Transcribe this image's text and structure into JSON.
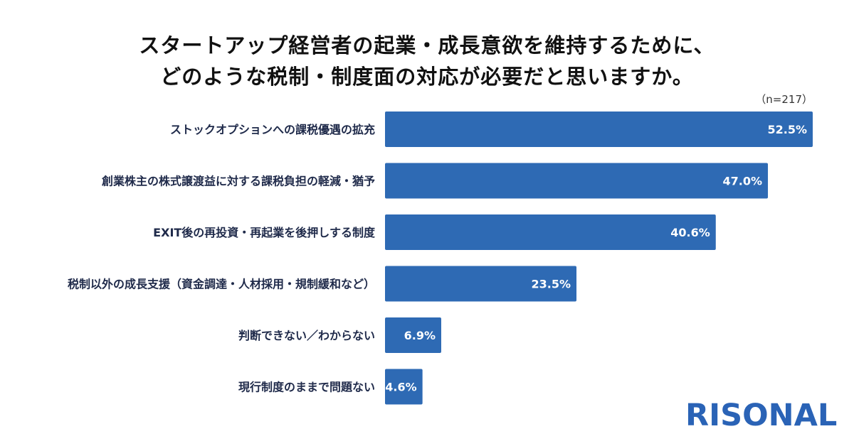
{
  "title_lines": [
    "スタートアップ経営者の起業・成長意欲を維持するために、",
    "どのような税制・制度面の対応が必要だと思いますか。"
  ],
  "sample_note": "（n=217）",
  "brand": "RISONAL",
  "colors": {
    "bar": "#2e6ab4",
    "label": "#1f2a4a",
    "value_text": "#ffffff"
  },
  "chart_data": {
    "type": "bar",
    "orientation": "horizontal",
    "title": "スタートアップ経営者の起業・成長意欲を維持するために、どのような税制・制度面の対応が必要だと思いますか。",
    "categories": [
      "ストックオプションへの課税優遇の拡充",
      "創業株主の株式譲渡益に対する課税負担の軽減・猶予",
      "EXIT後の再投資・再起業を後押しする制度",
      "税制以外の成長支援（資金調達・人材採用・規制緩和など）",
      "判断できない／わからない",
      "現行制度のままで問題ない"
    ],
    "values": [
      52.5,
      47.0,
      40.6,
      23.5,
      6.9,
      4.6
    ],
    "value_labels": [
      "52.5%",
      "47.0%",
      "40.6%",
      "23.5%",
      "6.9%",
      "4.6%"
    ],
    "unit": "%",
    "xlim": [
      0,
      52.5
    ],
    "grid": false,
    "legend": "none"
  }
}
